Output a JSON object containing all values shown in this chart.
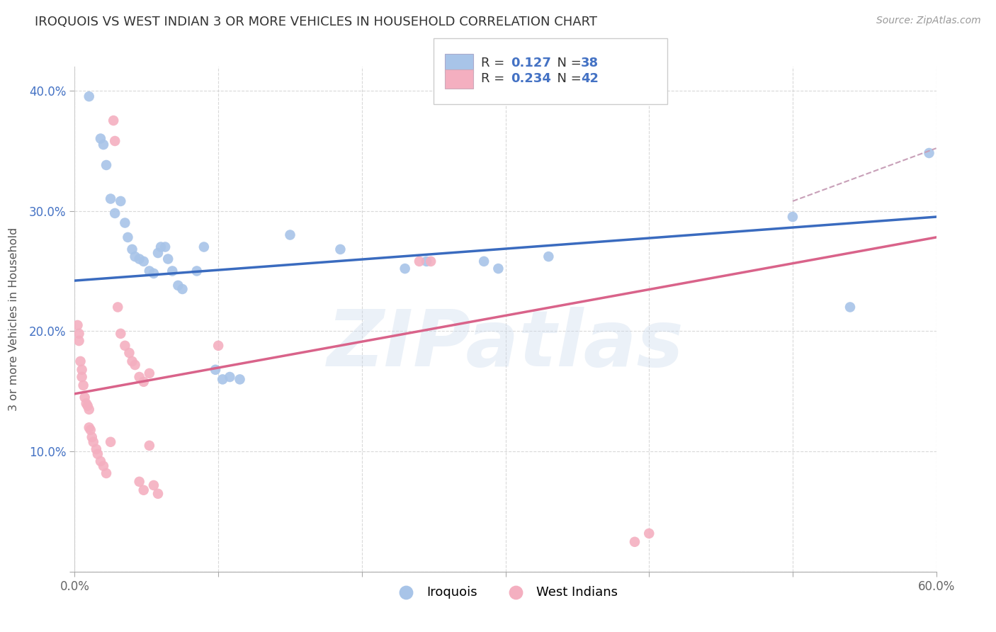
{
  "title": "IROQUOIS VS WEST INDIAN 3 OR MORE VEHICLES IN HOUSEHOLD CORRELATION CHART",
  "source": "Source: ZipAtlas.com",
  "ylabel": "3 or more Vehicles in Household",
  "watermark": "ZIPatlas",
  "xlim": [
    0.0,
    0.6
  ],
  "ylim": [
    0.0,
    0.42
  ],
  "legend_r_n": [
    {
      "R": "0.127",
      "N": "38"
    },
    {
      "R": "0.234",
      "N": "42"
    }
  ],
  "iroquois_color": "#a8c4e8",
  "west_indian_color": "#f4afc0",
  "iroquois_line_color": "#3a6bbf",
  "west_indian_line_color": "#d9638a",
  "dashed_color": "#c8a0b8",
  "background_color": "#ffffff",
  "iroquois_points": [
    [
      0.01,
      0.395
    ],
    [
      0.018,
      0.36
    ],
    [
      0.02,
      0.355
    ],
    [
      0.022,
      0.338
    ],
    [
      0.025,
      0.31
    ],
    [
      0.028,
      0.298
    ],
    [
      0.032,
      0.308
    ],
    [
      0.035,
      0.29
    ],
    [
      0.037,
      0.278
    ],
    [
      0.04,
      0.268
    ],
    [
      0.042,
      0.262
    ],
    [
      0.045,
      0.26
    ],
    [
      0.048,
      0.258
    ],
    [
      0.052,
      0.25
    ],
    [
      0.055,
      0.248
    ],
    [
      0.058,
      0.265
    ],
    [
      0.06,
      0.27
    ],
    [
      0.063,
      0.27
    ],
    [
      0.065,
      0.26
    ],
    [
      0.068,
      0.25
    ],
    [
      0.072,
      0.238
    ],
    [
      0.075,
      0.235
    ],
    [
      0.085,
      0.25
    ],
    [
      0.09,
      0.27
    ],
    [
      0.098,
      0.168
    ],
    [
      0.103,
      0.16
    ],
    [
      0.108,
      0.162
    ],
    [
      0.115,
      0.16
    ],
    [
      0.15,
      0.28
    ],
    [
      0.185,
      0.268
    ],
    [
      0.23,
      0.252
    ],
    [
      0.245,
      0.258
    ],
    [
      0.285,
      0.258
    ],
    [
      0.295,
      0.252
    ],
    [
      0.33,
      0.262
    ],
    [
      0.5,
      0.295
    ],
    [
      0.54,
      0.22
    ],
    [
      0.595,
      0.348
    ]
  ],
  "west_indian_points": [
    [
      0.002,
      0.205
    ],
    [
      0.003,
      0.198
    ],
    [
      0.003,
      0.192
    ],
    [
      0.004,
      0.175
    ],
    [
      0.005,
      0.168
    ],
    [
      0.005,
      0.162
    ],
    [
      0.006,
      0.155
    ],
    [
      0.007,
      0.145
    ],
    [
      0.008,
      0.14
    ],
    [
      0.009,
      0.138
    ],
    [
      0.01,
      0.135
    ],
    [
      0.01,
      0.12
    ],
    [
      0.011,
      0.118
    ],
    [
      0.012,
      0.112
    ],
    [
      0.013,
      0.108
    ],
    [
      0.015,
      0.102
    ],
    [
      0.016,
      0.098
    ],
    [
      0.018,
      0.092
    ],
    [
      0.02,
      0.088
    ],
    [
      0.022,
      0.082
    ],
    [
      0.025,
      0.108
    ],
    [
      0.027,
      0.375
    ],
    [
      0.028,
      0.358
    ],
    [
      0.03,
      0.22
    ],
    [
      0.032,
      0.198
    ],
    [
      0.035,
      0.188
    ],
    [
      0.038,
      0.182
    ],
    [
      0.04,
      0.175
    ],
    [
      0.042,
      0.172
    ],
    [
      0.045,
      0.162
    ],
    [
      0.048,
      0.158
    ],
    [
      0.052,
      0.165
    ],
    [
      0.055,
      0.072
    ],
    [
      0.058,
      0.065
    ],
    [
      0.1,
      0.188
    ],
    [
      0.24,
      0.258
    ],
    [
      0.248,
      0.258
    ],
    [
      0.39,
      0.025
    ],
    [
      0.4,
      0.032
    ],
    [
      0.045,
      0.075
    ],
    [
      0.048,
      0.068
    ],
    [
      0.052,
      0.105
    ]
  ],
  "iroquois_line": [
    0.0,
    0.6
  ],
  "iroquois_line_y": [
    0.242,
    0.295
  ],
  "west_indian_line": [
    0.0,
    0.6
  ],
  "west_indian_line_y": [
    0.148,
    0.278
  ],
  "dashed_line_x": [
    0.5,
    0.6
  ],
  "dashed_line_y": [
    0.308,
    0.352
  ]
}
